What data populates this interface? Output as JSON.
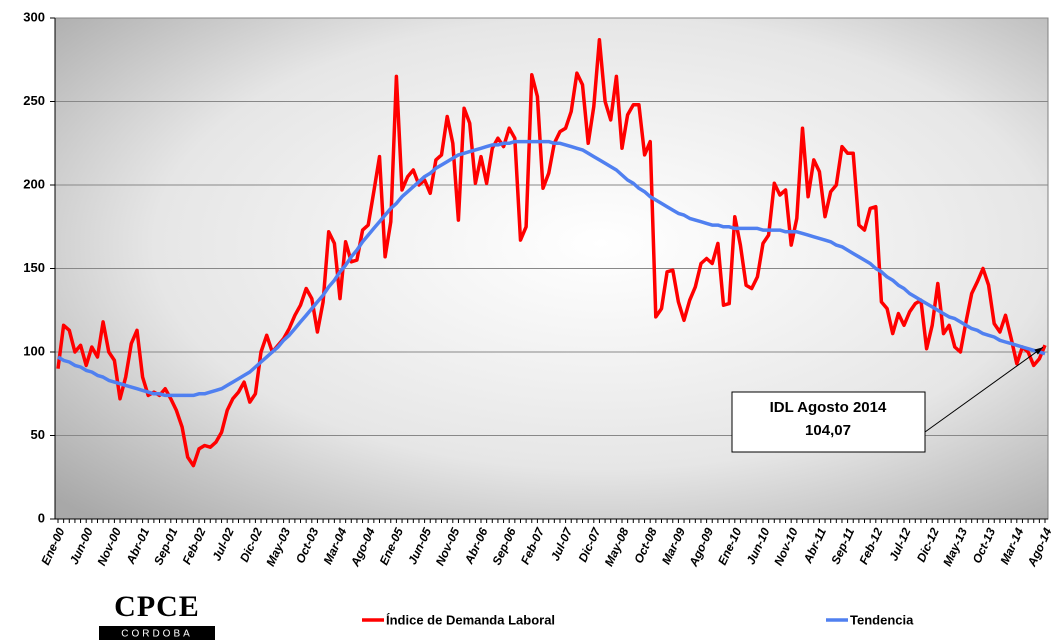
{
  "chart_data": {
    "type": "line",
    "categories": [
      "Ene-00",
      null,
      null,
      null,
      null,
      "Jun-00",
      null,
      null,
      null,
      null,
      "Nov-00",
      null,
      null,
      null,
      null,
      "Abr-01",
      null,
      null,
      null,
      null,
      "Sep-01",
      null,
      null,
      null,
      null,
      "Feb-02",
      null,
      null,
      null,
      null,
      "Jul-02",
      null,
      null,
      null,
      null,
      "Dic-02",
      null,
      null,
      null,
      null,
      "May-03",
      null,
      null,
      null,
      null,
      "Oct-03",
      null,
      null,
      null,
      null,
      "Mar-04",
      null,
      null,
      null,
      null,
      "Ago-04",
      null,
      null,
      null,
      null,
      "Ene-05",
      null,
      null,
      null,
      null,
      "Jun-05",
      null,
      null,
      null,
      null,
      "Nov-05",
      null,
      null,
      null,
      null,
      "Abr-06",
      null,
      null,
      null,
      null,
      "Sep-06",
      null,
      null,
      null,
      null,
      "Feb-07",
      null,
      null,
      null,
      null,
      "Jul-07",
      null,
      null,
      null,
      null,
      "Dic-07",
      null,
      null,
      null,
      null,
      "May-08",
      null,
      null,
      null,
      null,
      "Oct-08",
      null,
      null,
      null,
      null,
      "Mar-09",
      null,
      null,
      null,
      null,
      "Ago-09",
      null,
      null,
      null,
      null,
      "Ene-10",
      null,
      null,
      null,
      null,
      "Jun-10",
      null,
      null,
      null,
      null,
      "Nov-10",
      null,
      null,
      null,
      null,
      "Abr-11",
      null,
      null,
      null,
      null,
      "Sep-11",
      null,
      null,
      null,
      null,
      "Feb-12",
      null,
      null,
      null,
      null,
      "Jul-12",
      null,
      null,
      null,
      null,
      "Dic-12",
      null,
      null,
      null,
      null,
      "May-13",
      null,
      null,
      null,
      null,
      "Oct-13",
      null,
      null,
      null,
      null,
      "Mar-14",
      null,
      null,
      null,
      null,
      "Ago-14"
    ],
    "series": [
      {
        "name": "Índice de Demanda Laboral",
        "color": "#ff0000",
        "values": [
          90,
          116,
          113,
          100,
          104,
          92,
          103,
          97,
          118,
          100,
          95,
          72,
          85,
          105,
          113,
          85,
          74,
          76,
          74,
          78,
          72,
          65,
          55,
          37,
          32,
          42,
          44,
          43,
          46,
          52,
          65,
          72,
          76,
          82,
          70,
          75,
          100,
          110,
          100,
          104,
          108,
          114,
          122,
          128,
          138,
          132,
          112,
          130,
          172,
          165,
          132,
          166,
          154,
          155,
          173,
          176,
          196,
          217,
          157,
          178,
          265,
          197,
          205,
          209,
          200,
          203,
          195,
          215,
          218,
          241,
          225,
          179,
          246,
          237,
          201,
          217,
          201,
          222,
          228,
          223,
          234,
          228,
          167,
          175,
          266,
          253,
          198,
          207,
          225,
          232,
          234,
          244,
          267,
          260,
          225,
          247,
          287,
          250,
          239,
          265,
          222,
          242,
          248,
          248,
          218,
          226,
          121,
          126,
          148,
          149,
          130,
          119,
          131,
          139,
          153,
          156,
          153,
          165,
          128,
          129,
          181,
          164,
          140,
          138,
          145,
          165,
          170,
          201,
          194,
          197,
          164,
          180,
          234,
          193,
          215,
          208,
          181,
          196,
          200,
          223,
          219,
          219,
          176,
          173,
          186,
          187,
          130,
          126,
          111,
          123,
          116,
          124,
          129,
          131,
          102,
          116,
          141,
          111,
          116,
          103,
          100,
          118,
          135,
          142,
          150,
          140,
          117,
          112,
          122,
          108,
          93,
          103,
          100,
          92,
          96,
          104.07
        ]
      },
      {
        "name": "Tendencia",
        "color": "#5080f0",
        "values": [
          97,
          95,
          94,
          92,
          91,
          89,
          88,
          86,
          85,
          83,
          82,
          81,
          80,
          79,
          78,
          77,
          76,
          75,
          75,
          74,
          74,
          74,
          74,
          74,
          74,
          75,
          75,
          76,
          77,
          78,
          80,
          82,
          84,
          86,
          88,
          91,
          94,
          97,
          100,
          103,
          107,
          110,
          114,
          118,
          122,
          126,
          130,
          134,
          139,
          143,
          148,
          152,
          157,
          161,
          166,
          170,
          174,
          178,
          182,
          186,
          189,
          193,
          196,
          199,
          202,
          205,
          207,
          210,
          212,
          214,
          216,
          218,
          219,
          220,
          221,
          222,
          223,
          224,
          224,
          225,
          225,
          226,
          226,
          226,
          226,
          226,
          226,
          226,
          225,
          225,
          224,
          223,
          222,
          221,
          219,
          217,
          215,
          213,
          211,
          209,
          206,
          203,
          201,
          198,
          196,
          193,
          191,
          189,
          187,
          185,
          183,
          182,
          180,
          179,
          178,
          177,
          176,
          176,
          175,
          175,
          174,
          174,
          174,
          174,
          174,
          173,
          173,
          173,
          173,
          172,
          172,
          172,
          171,
          170,
          169,
          168,
          167,
          166,
          164,
          163,
          161,
          159,
          157,
          155,
          153,
          150,
          148,
          145,
          143,
          140,
          138,
          135,
          133,
          131,
          129,
          127,
          125,
          123,
          121,
          120,
          118,
          116,
          114,
          113,
          111,
          110,
          109,
          107,
          106,
          105,
          104,
          103,
          102,
          101,
          100,
          99
        ]
      }
    ],
    "ylim": [
      0,
      300
    ],
    "yticks": [
      0,
      50,
      100,
      150,
      200,
      250,
      300
    ],
    "grid": true,
    "annotation": [
      "IDL Agosto 2014",
      "104,07"
    ],
    "logo": "CPCE",
    "logo_subtext": "CORDOBA"
  }
}
